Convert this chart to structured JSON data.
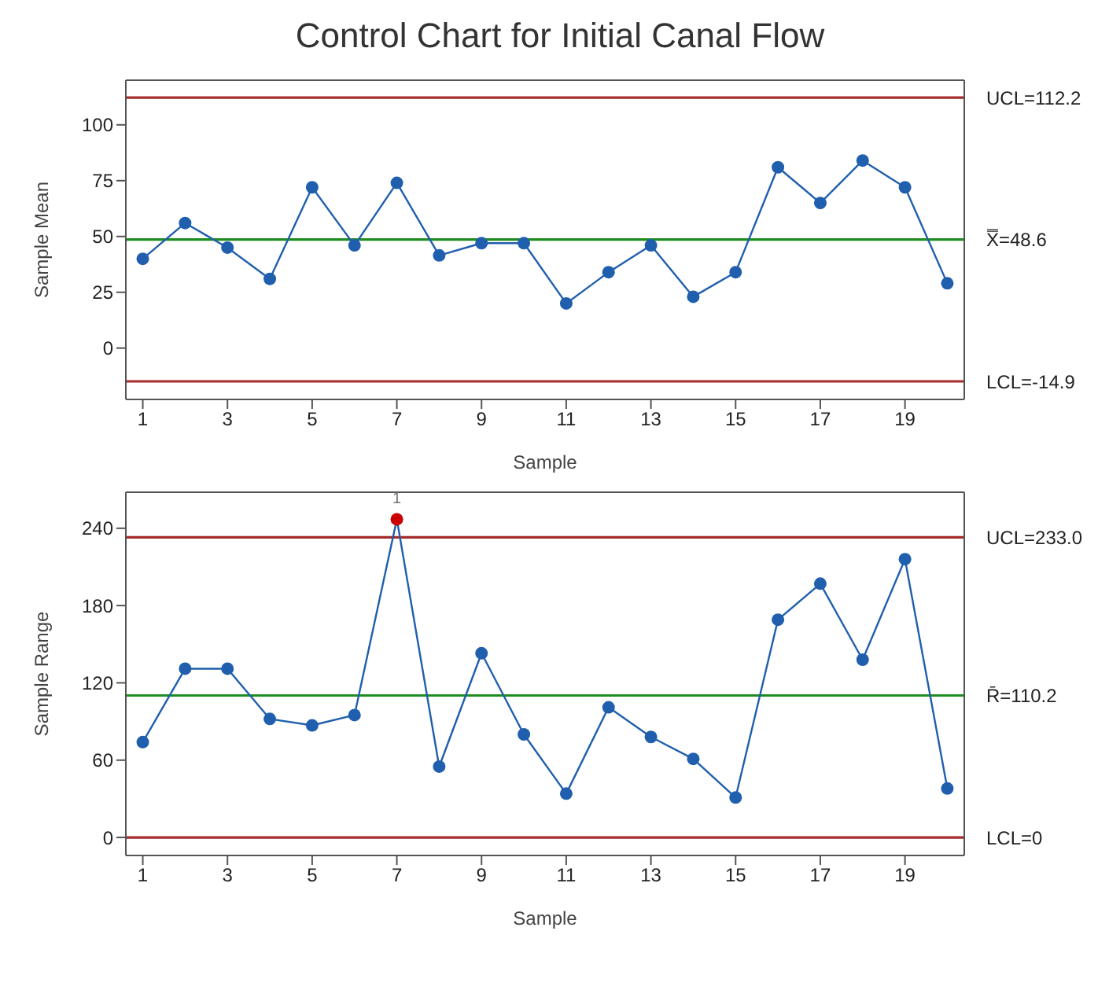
{
  "chart_data": [
    {
      "type": "line",
      "title": "Control Chart for Initial Canal Flow",
      "xlabel": "Sample",
      "ylabel": "Sample Mean",
      "x": [
        1,
        2,
        3,
        4,
        5,
        6,
        7,
        8,
        9,
        10,
        11,
        12,
        13,
        14,
        15,
        16,
        17,
        18,
        19,
        20
      ],
      "xlim": [
        0.6,
        20.4
      ],
      "xticks": [
        1,
        3,
        5,
        7,
        9,
        11,
        13,
        15,
        17,
        19
      ],
      "ylim": [
        -23,
        120
      ],
      "yticks": [
        0,
        25,
        50,
        75,
        100
      ],
      "marker": "circle",
      "line_style": "solid",
      "series": [
        {
          "color": "#1f5fad",
          "values": [
            40,
            56,
            45,
            31,
            72,
            46,
            74,
            41.5,
            47,
            47,
            20,
            34,
            46,
            23,
            34,
            81,
            65,
            84,
            72,
            29
          ]
        }
      ],
      "ref_lines": [
        {
          "axis": "y",
          "value": 112.2,
          "label": "UCL=112.2",
          "color": "#a52a2a"
        },
        {
          "axis": "y",
          "value": 48.6,
          "label": "X̿=48.6",
          "color": "#1e8c1e"
        },
        {
          "axis": "y",
          "value": -14.9,
          "label": "LCL=-14.9",
          "color": "#a52a2a"
        }
      ]
    },
    {
      "type": "line",
      "xlabel": "Sample",
      "ylabel": "Sample Range",
      "x": [
        1,
        2,
        3,
        4,
        5,
        6,
        7,
        8,
        9,
        10,
        11,
        12,
        13,
        14,
        15,
        16,
        17,
        18,
        19,
        20
      ],
      "xlim": [
        0.6,
        20.4
      ],
      "xticks": [
        1,
        3,
        5,
        7,
        9,
        11,
        13,
        15,
        17,
        19
      ],
      "ylim": [
        -14,
        268
      ],
      "yticks": [
        0,
        60,
        120,
        180,
        240
      ],
      "marker": "circle",
      "line_style": "solid",
      "series": [
        {
          "color": "#1f5fad",
          "values": [
            74,
            131,
            131,
            92,
            87,
            95,
            247,
            55,
            143,
            80,
            34,
            101,
            78,
            61,
            31,
            169,
            197,
            138,
            216,
            38
          ],
          "colors": [
            "#1f5fad",
            "#1f5fad",
            "#1f5fad",
            "#1f5fad",
            "#1f5fad",
            "#1f5fad",
            "#cc0000",
            "#1f5fad",
            "#1f5fad",
            "#1f5fad",
            "#1f5fad",
            "#1f5fad",
            "#1f5fad",
            "#1f5fad",
            "#1f5fad",
            "#1f5fad",
            "#1f5fad",
            "#1f5fad",
            "#1f5fad",
            "#1f5fad"
          ]
        }
      ],
      "ref_lines": [
        {
          "axis": "y",
          "value": 233.0,
          "label": "UCL=233.0",
          "color": "#a52a2a"
        },
        {
          "axis": "y",
          "value": 110.2,
          "label": "R̄=110.2",
          "color": "#1e8c1e"
        },
        {
          "axis": "y",
          "value": 0,
          "label": "LCL=0",
          "color": "#a52a2a"
        }
      ],
      "annotations": [
        {
          "text": "1",
          "x": 7,
          "y": 247
        }
      ]
    }
  ]
}
